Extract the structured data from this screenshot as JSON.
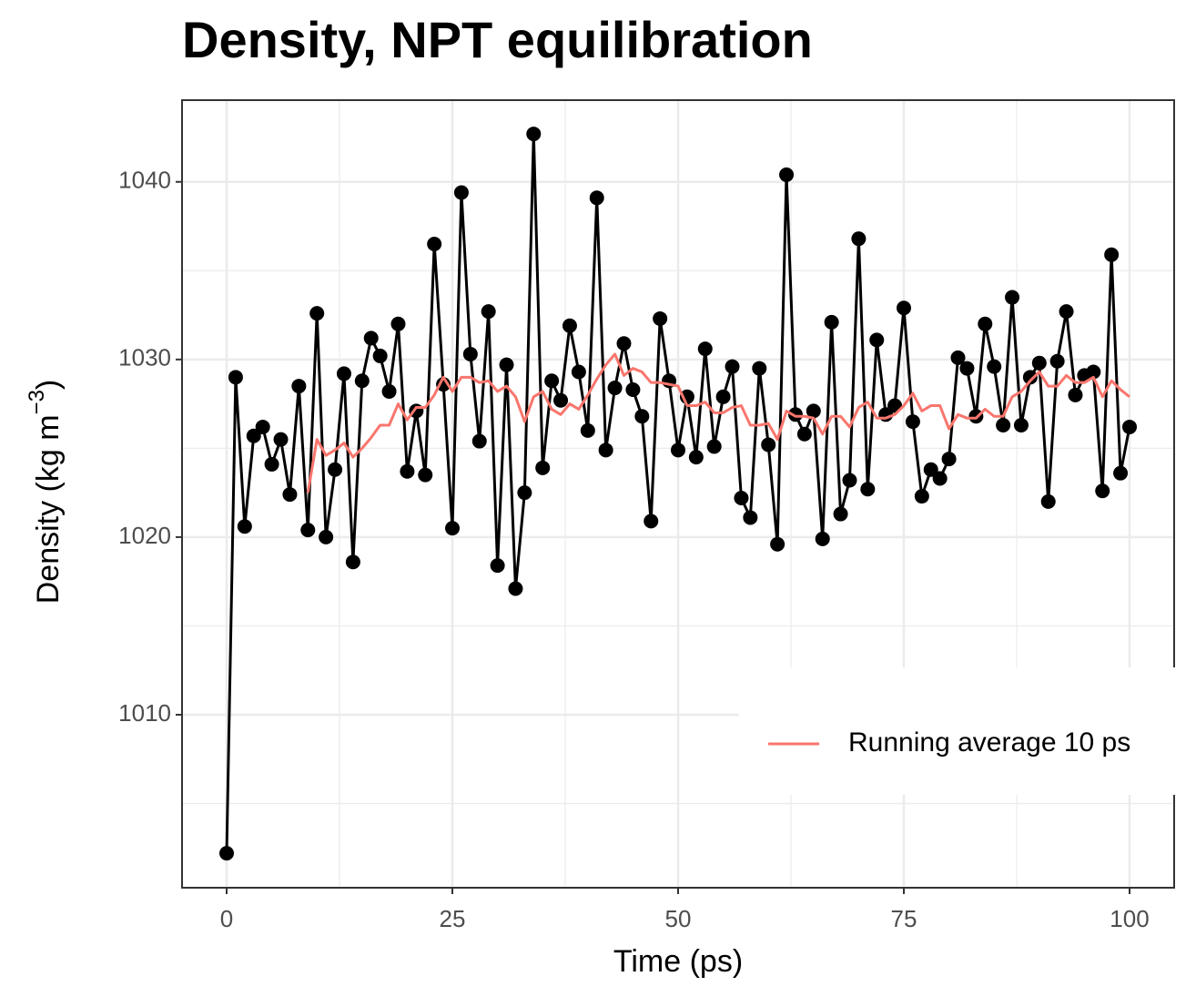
{
  "chart_data": {
    "type": "line",
    "title": "Density, NPT equilibration",
    "x_label": "Time (ps)",
    "y_label": {
      "text": "Density (kg  m",
      "superscript": "−3",
      "suffix": ")"
    },
    "x": [
      0,
      1,
      2,
      3,
      4,
      5,
      6,
      7,
      8,
      9,
      10,
      11,
      12,
      13,
      14,
      15,
      16,
      17,
      18,
      19,
      20,
      21,
      22,
      23,
      24,
      25,
      26,
      27,
      28,
      29,
      30,
      31,
      32,
      33,
      34,
      35,
      36,
      37,
      38,
      39,
      40,
      41,
      42,
      43,
      44,
      45,
      46,
      47,
      48,
      49,
      50,
      51,
      52,
      53,
      54,
      55,
      56,
      57,
      58,
      59,
      60,
      61,
      62,
      63,
      64,
      65,
      66,
      67,
      68,
      69,
      70,
      71,
      72,
      73,
      74,
      75,
      76,
      77,
      78,
      79,
      80,
      81,
      82,
      83,
      84,
      85,
      86,
      87,
      88,
      89,
      90,
      91,
      92,
      93,
      94,
      95,
      96,
      97,
      98,
      99,
      100
    ],
    "series": [
      {
        "color": "#000000",
        "markers": true,
        "values": [
          1002.2,
          1029.0,
          1020.6,
          1025.7,
          1026.2,
          1024.1,
          1025.5,
          1022.4,
          1028.5,
          1020.4,
          1032.6,
          1020.0,
          1023.8,
          1029.2,
          1018.6,
          1028.8,
          1031.2,
          1030.2,
          1028.2,
          1032.0,
          1023.7,
          1027.1,
          1023.5,
          1036.5,
          1028.6,
          1020.5,
          1039.4,
          1030.3,
          1025.4,
          1032.7,
          1018.4,
          1029.7,
          1017.1,
          1022.5,
          1042.7,
          1023.9,
          1028.8,
          1027.7,
          1031.9,
          1029.3,
          1026.0,
          1039.1,
          1024.9,
          1028.4,
          1030.9,
          1028.3,
          1026.8,
          1020.9,
          1032.3,
          1028.8,
          1024.9,
          1027.9,
          1024.5,
          1030.6,
          1025.1,
          1027.9,
          1029.6,
          1022.2,
          1021.1,
          1029.5,
          1025.2,
          1019.6,
          1040.4,
          1026.9,
          1025.8,
          1027.1,
          1019.9,
          1032.1,
          1021.3,
          1023.2,
          1036.8,
          1022.7,
          1031.1,
          1026.9,
          1027.4,
          1032.9,
          1026.5,
          1022.3,
          1023.8,
          1023.3,
          1024.4,
          1030.1,
          1029.5,
          1026.8,
          1032.0,
          1029.6,
          1026.3,
          1033.5,
          1026.3,
          1029.0,
          1029.8,
          1022.0,
          1029.9,
          1032.7,
          1028.0,
          1029.1,
          1029.3,
          1022.6,
          1035.9,
          1023.6,
          1026.2
        ]
      },
      {
        "name": "Running average 10 ps",
        "color": "#f8766d",
        "markers": false,
        "values": [
          null,
          null,
          null,
          null,
          null,
          null,
          null,
          null,
          null,
          1022.5,
          1025.5,
          1024.6,
          1024.9,
          1025.3,
          1024.5,
          1025.0,
          1025.6,
          1026.3,
          1026.3,
          1027.5,
          1026.6,
          1027.3,
          1027.3,
          1028.0,
          1029.0,
          1028.2,
          1029.0,
          1029.0,
          1028.7,
          1028.8,
          1028.2,
          1028.5,
          1027.9,
          1026.5,
          1027.9,
          1028.2,
          1027.2,
          1026.9,
          1027.5,
          1027.2,
          1028.0,
          1028.9,
          1029.7,
          1030.3,
          1029.1,
          1029.5,
          1029.3,
          1028.7,
          1028.7,
          1028.6,
          1028.5,
          1027.4,
          1027.4,
          1027.6,
          1027.0,
          1027.0,
          1027.3,
          1027.4,
          1026.3,
          1026.3,
          1026.4,
          1025.5,
          1027.1,
          1026.8,
          1026.8,
          1026.7,
          1025.8,
          1026.8,
          1026.8,
          1026.2,
          1027.3,
          1027.6,
          1026.7,
          1026.7,
          1026.9,
          1027.4,
          1028.1,
          1027.1,
          1027.4,
          1027.4,
          1026.1,
          1026.9,
          1026.7,
          1026.7,
          1027.2,
          1026.8,
          1026.8,
          1027.9,
          1028.2,
          1028.8,
          1029.3,
          1028.5,
          1028.5,
          1029.1,
          1028.7,
          1028.7,
          1029.0,
          1027.9,
          1028.8,
          1028.3,
          1027.9
        ]
      }
    ],
    "xlim": [
      -4.94,
      104.94
    ],
    "ylim": [
      1000.26,
      1044.6
    ],
    "xticks": [
      0,
      25,
      50,
      75,
      100
    ],
    "yticks": [
      1010,
      1020,
      1030,
      1040
    ],
    "x_minor": [
      12.5,
      37.5,
      62.5,
      87.5
    ],
    "y_minor": [
      1005,
      1015,
      1025,
      1035
    ],
    "grid": true,
    "legend": "bottom-right"
  }
}
